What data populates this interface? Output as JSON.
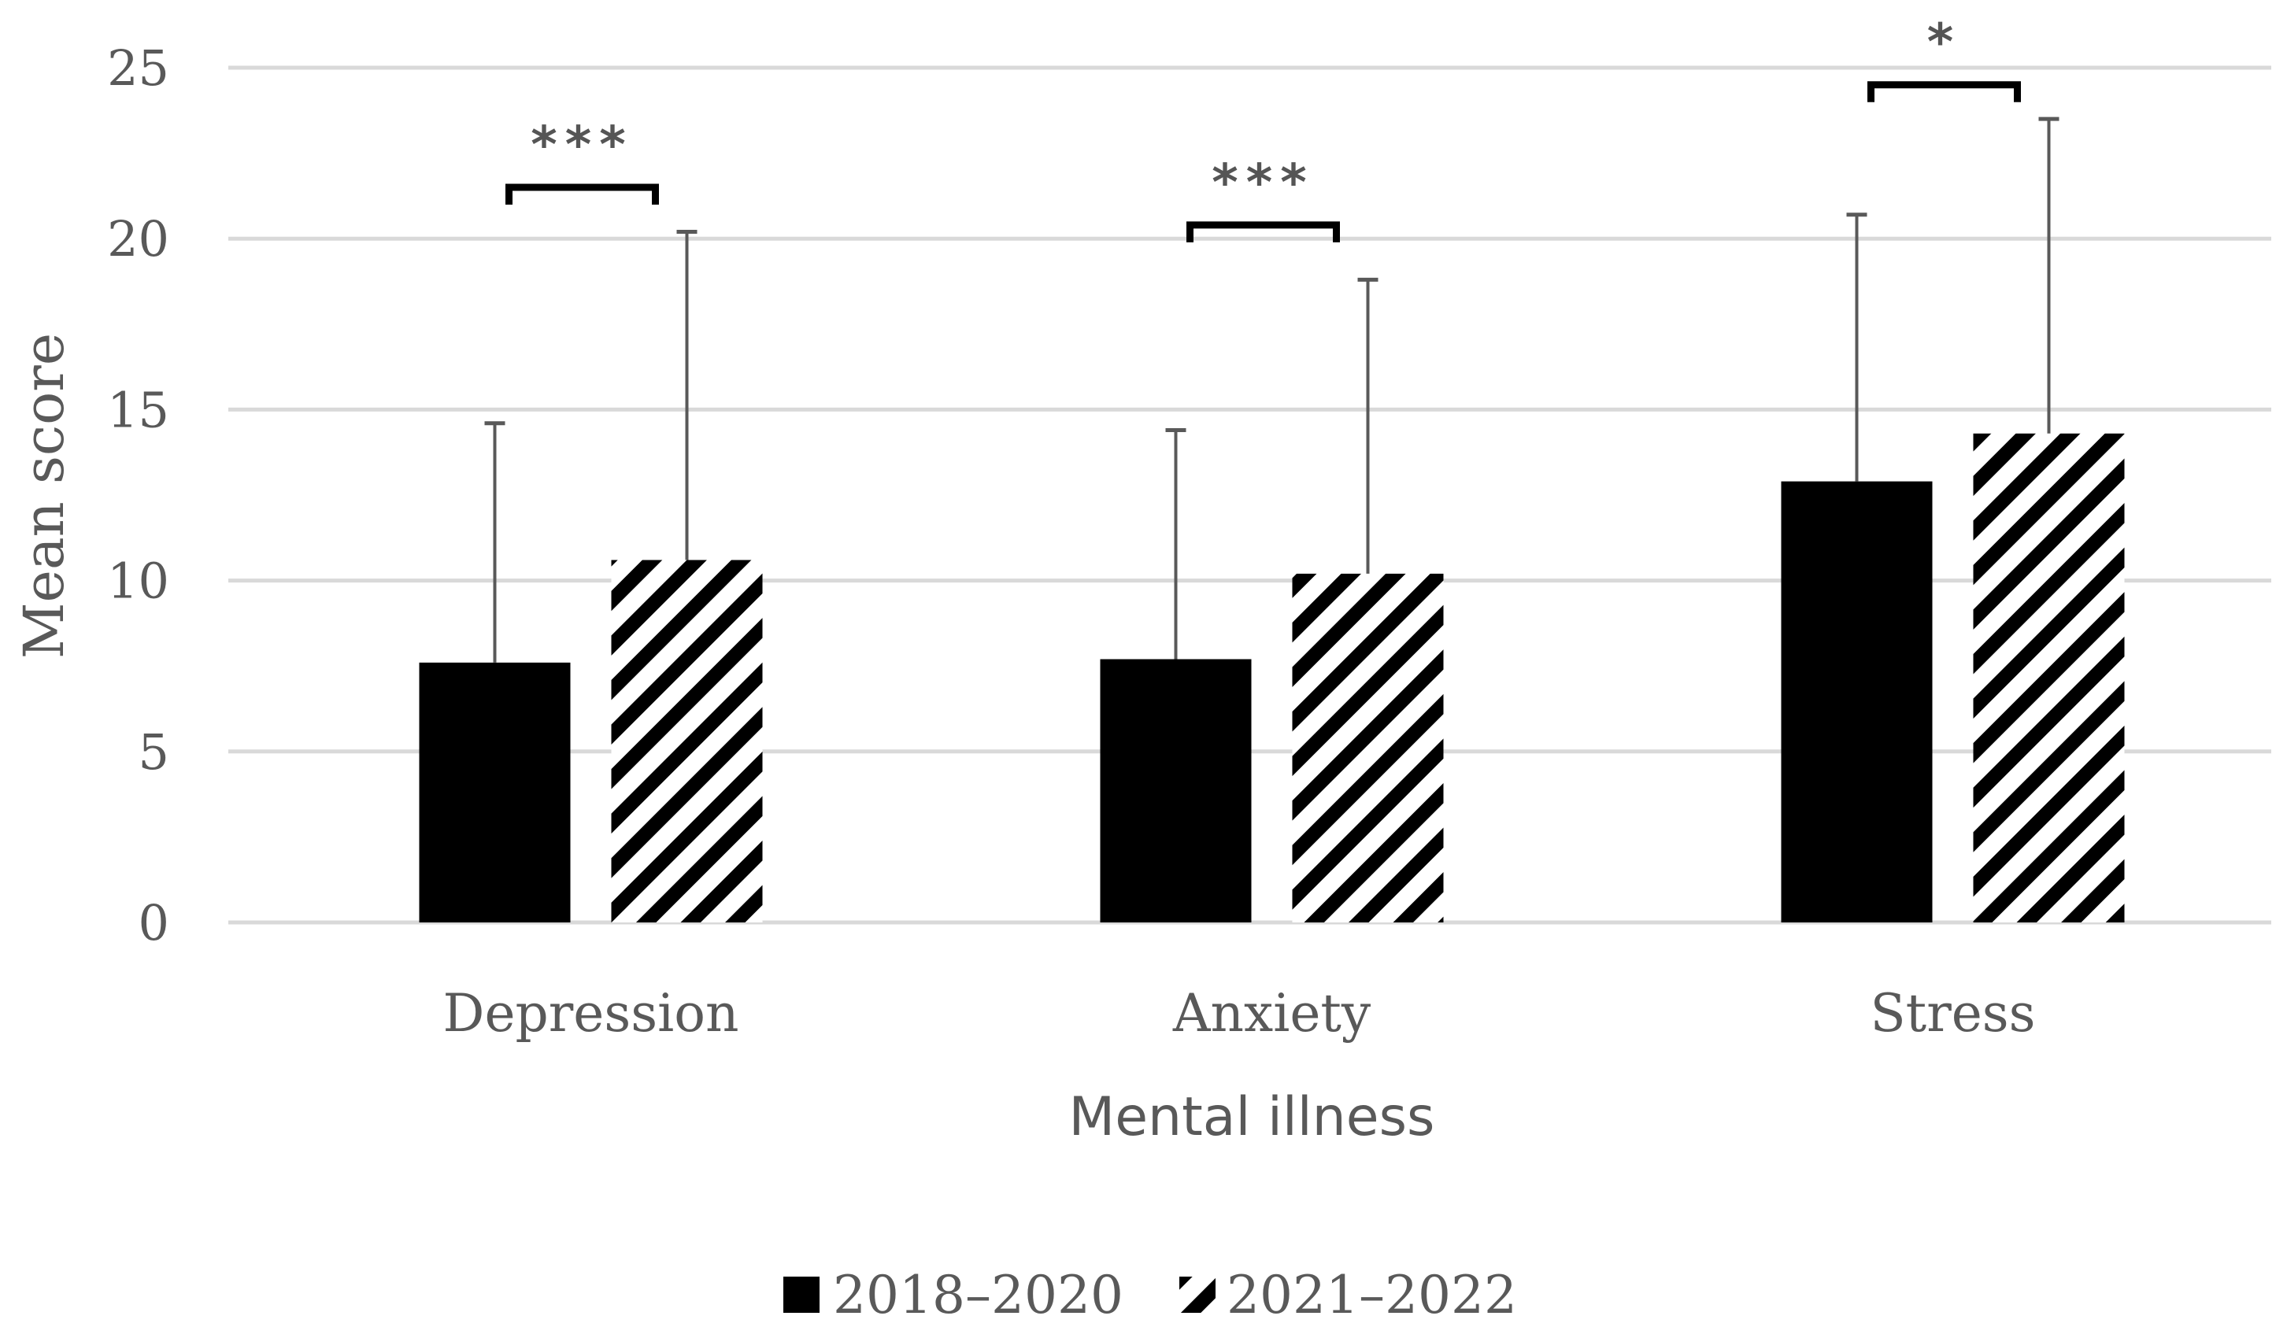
{
  "chart_data": {
    "type": "bar",
    "title": "",
    "xlabel": "Mental illness",
    "ylabel": "Mean score",
    "ylim": [
      0,
      25
    ],
    "yticks": [
      "0",
      "5",
      "10",
      "15",
      "20",
      "25"
    ],
    "grid": true,
    "categories": [
      "Depression",
      "Anxiety",
      "Stress"
    ],
    "series": [
      {
        "name": "2018–2020",
        "pattern": "solid",
        "color": "#000000",
        "values": [
          7.6,
          7.7,
          12.9
        ],
        "error_upper": [
          14.6,
          14.4,
          20.7
        ]
      },
      {
        "name": "2021–2022",
        "pattern": "hatched",
        "color": "#000000",
        "values": [
          10.6,
          10.2,
          14.3
        ],
        "error_upper": [
          20.2,
          18.8,
          23.5
        ]
      }
    ],
    "significance": [
      {
        "category": "Depression",
        "label": "***",
        "bracket_y": 21.5
      },
      {
        "category": "Anxiety",
        "label": "***",
        "bracket_y": 20.4
      },
      {
        "category": "Stress",
        "label": "*",
        "bracket_y": 24.5
      }
    ],
    "legend_position": "bottom-center",
    "gridline_color": "#d9d9d9",
    "errorbar_color": "#595959"
  }
}
